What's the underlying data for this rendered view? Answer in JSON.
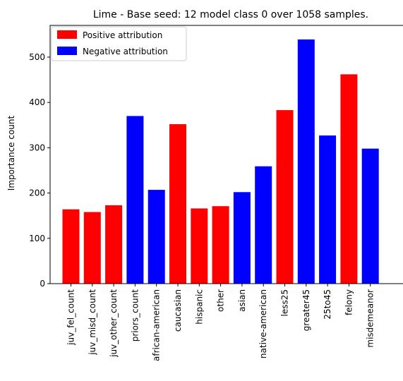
{
  "chart_data": {
    "type": "bar",
    "title": "Lime - Base seed: 12 model class 0 over 1058 samples.",
    "xlabel": "",
    "ylabel": "Importance count",
    "ylim": [
      0,
      570
    ],
    "yticks": [
      0,
      100,
      200,
      300,
      400,
      500
    ],
    "grid": false,
    "legend": {
      "placement": "top-left",
      "entries": [
        {
          "label": "Positive attribution",
          "color": "#ff0000"
        },
        {
          "label": "Negative attribution",
          "color": "#0000ff"
        }
      ]
    },
    "categories": [
      "juv_fel_count",
      "juv_misd_count",
      "juv_other_count",
      "priors_count",
      "african-american",
      "caucasian",
      "hispanic",
      "other",
      "asian",
      "native-american",
      "less25",
      "greater45",
      "25to45",
      "felony",
      "misdemeanor"
    ],
    "values": [
      164,
      158,
      173,
      370,
      207,
      352,
      166,
      171,
      202,
      259,
      383,
      539,
      327,
      462,
      298
    ],
    "attribution": [
      "positive",
      "positive",
      "positive",
      "negative",
      "negative",
      "positive",
      "positive",
      "positive",
      "negative",
      "negative",
      "positive",
      "negative",
      "negative",
      "positive",
      "negative"
    ],
    "colors": {
      "positive": "#ff0000",
      "negative": "#0000ff"
    }
  }
}
